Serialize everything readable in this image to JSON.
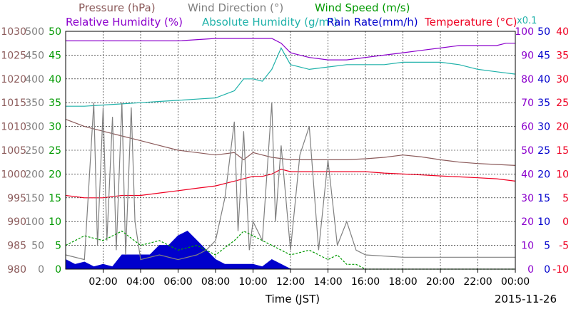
{
  "chart_data": {
    "type": "line",
    "xlabel": "Time (JST)",
    "date": "2015-11-26",
    "scale_note": "x0.1",
    "x_ticks": [
      "02:00",
      "04:00",
      "06:00",
      "08:00",
      "10:00",
      "12:00",
      "14:00",
      "16:00",
      "18:00",
      "20:00",
      "22:00",
      "00:00"
    ],
    "x_range": [
      0,
      24
    ],
    "legend_row1": [
      {
        "name": "Pressure (hPa)",
        "color": "#8b5a5a"
      },
      {
        "name": "Wind Direction (°)",
        "color": "#808080"
      },
      {
        "name": "Wind Speed (m/s)",
        "color": "#009900"
      }
    ],
    "legend_row2": [
      {
        "name": "Relative Humidity (%)",
        "color": "#8b00cc"
      },
      {
        "name": "Absolute Humidity (g/m³)",
        "color": "#20b2aa"
      },
      {
        "name": "Rain Rate(mm/h)",
        "color": "#0000cc"
      },
      {
        "name": "Temperature (°C)",
        "color": "#ee0022"
      }
    ],
    "axes": {
      "pressure": {
        "color": "#8b5a5a",
        "ticks": [
          "980",
          "985",
          "990",
          "995",
          "1000",
          "1005",
          "1010",
          "1015",
          "1020",
          "1025",
          "1030"
        ],
        "range": [
          980,
          1030
        ]
      },
      "wind_direction": {
        "color": "#808080",
        "ticks": [
          "0",
          "50",
          "100",
          "150",
          "200",
          "250",
          "300",
          "350",
          "400",
          "450",
          "500"
        ],
        "range": [
          0,
          500
        ]
      },
      "wind_speed": {
        "color": "#009900",
        "ticks": [
          "0",
          "5",
          "10",
          "15",
          "20",
          "25",
          "30",
          "35",
          "40",
          "45",
          "50"
        ],
        "range": [
          0,
          50
        ]
      },
      "relative_humidity": {
        "color": "#8b00cc",
        "ticks": [
          "0",
          "10",
          "20",
          "30",
          "40",
          "50",
          "60",
          "70",
          "80",
          "90",
          "100"
        ],
        "range": [
          0,
          100
        ]
      },
      "rain_rate": {
        "color": "#0000cc",
        "ticks": [
          "0",
          "5",
          "10",
          "15",
          "20",
          "25",
          "30",
          "35",
          "40",
          "45",
          "50"
        ],
        "range": [
          0,
          50
        ]
      },
      "temperature": {
        "color": "#ee0022",
        "ticks": [
          "-10",
          "-5",
          "0",
          "5",
          "10",
          "15",
          "20",
          "25",
          "30",
          "35",
          "40"
        ],
        "range": [
          -10,
          40
        ]
      }
    },
    "grid": true,
    "series": [
      {
        "name": "Pressure (hPa)",
        "color": "#8b5a5a",
        "axis": "pressure",
        "x": [
          0,
          1,
          2,
          3,
          4,
          5,
          6,
          7,
          8,
          9,
          9.5,
          10,
          10.5,
          11,
          12,
          13,
          14,
          15,
          16,
          17,
          18,
          19,
          20,
          21,
          22,
          23,
          24
        ],
        "y": [
          1011.5,
          1010,
          1009,
          1008,
          1007,
          1006,
          1005,
          1004.5,
          1004,
          1004.5,
          1003,
          1004.5,
          1004,
          1003.5,
          1003,
          1003,
          1003,
          1003,
          1003.2,
          1003.5,
          1004,
          1003.6,
          1003,
          1002.5,
          1002.2,
          1002,
          1001.8
        ]
      },
      {
        "name": "Relative Humidity (%)",
        "color": "#8b00cc",
        "axis": "relative_humidity",
        "x": [
          0,
          2,
          4,
          6,
          8,
          10,
          11,
          11.5,
          12,
          12.5,
          13,
          14,
          15,
          16,
          17,
          18,
          19,
          20,
          21,
          22,
          23,
          23.5,
          24
        ],
        "y": [
          96,
          96,
          96,
          96,
          97,
          97,
          97,
          95,
          91,
          90,
          89,
          88,
          88,
          89,
          90,
          91,
          92,
          93,
          94,
          94,
          94,
          95,
          95
        ]
      },
      {
        "name": "Absolute Humidity (g/m³)",
        "color": "#20b2aa",
        "axis": "relative_humidity",
        "x": [
          0,
          1,
          2,
          3,
          4,
          5,
          6,
          7,
          8,
          9,
          9.5,
          10,
          10.5,
          11,
          11.5,
          12,
          12.5,
          13,
          14,
          15,
          16,
          17,
          18,
          19,
          20,
          21,
          22,
          23,
          24
        ],
        "y": [
          68.5,
          68.5,
          69,
          69.5,
          70,
          70.5,
          71,
          71.5,
          72,
          75,
          80,
          80,
          79,
          84,
          93,
          86,
          85,
          84,
          85,
          86,
          86,
          86,
          87,
          87,
          87,
          86,
          84,
          83,
          82
        ]
      },
      {
        "name": "Rain Rate(mm/h)",
        "color": "#0000cc",
        "axis": "rain_rate",
        "x": [
          0,
          0.5,
          1,
          1.5,
          2,
          2.5,
          3,
          3.5,
          4,
          4.5,
          5,
          5.5,
          6,
          6.5,
          7,
          7.5,
          8,
          8.5,
          9,
          9.5,
          10,
          10.5,
          11,
          12,
          13,
          14,
          15,
          16,
          24
        ],
        "y": [
          2,
          1,
          1.5,
          0.5,
          1,
          0.5,
          3,
          3,
          3,
          3,
          5,
          5,
          7,
          8,
          6,
          4,
          2,
          1,
          1,
          1,
          1,
          0.5,
          2,
          0,
          0,
          0,
          0,
          0,
          0
        ]
      },
      {
        "name": "Temperature (°C)",
        "color": "#ee0022",
        "axis": "temperature",
        "x": [
          0,
          1,
          2,
          3,
          4,
          5,
          6,
          7,
          8,
          9,
          9.5,
          10,
          10.5,
          11,
          11.5,
          12,
          13,
          14,
          15,
          16,
          17,
          18,
          19,
          20,
          21,
          22,
          23,
          24
        ],
        "y": [
          5.5,
          5,
          5,
          5.5,
          5.5,
          6,
          6.5,
          7,
          7.5,
          8.5,
          9,
          9.5,
          9.5,
          10,
          11,
          10.5,
          10.5,
          10.5,
          10.5,
          10.5,
          10.2,
          10,
          9.8,
          9.6,
          9.4,
          9.2,
          9,
          8.5
        ]
      },
      {
        "name": "Wind Direction (°)",
        "color": "#808080",
        "axis": "wind_direction",
        "x": [
          0,
          1,
          1.5,
          1.7,
          2,
          2.2,
          2.5,
          2.7,
          3,
          3.2,
          3.5,
          3.7,
          4,
          5,
          6,
          7,
          7.5,
          8,
          8.5,
          9,
          9.2,
          9.5,
          9.8,
          10,
          10.5,
          11,
          11.2,
          11.5,
          12,
          12.5,
          13,
          13.5,
          14,
          14.5,
          15,
          15.5,
          16,
          18,
          20,
          22,
          24
        ],
        "y": [
          30,
          20,
          350,
          50,
          340,
          60,
          320,
          40,
          350,
          30,
          340,
          100,
          20,
          30,
          20,
          30,
          40,
          60,
          150,
          310,
          80,
          290,
          40,
          100,
          60,
          350,
          100,
          260,
          40,
          240,
          300,
          40,
          230,
          50,
          100,
          40,
          30,
          25,
          25,
          25,
          25
        ]
      },
      {
        "name": "Wind Speed (m/s)",
        "color": "#009900",
        "axis": "wind_speed",
        "x": [
          0,
          1,
          2,
          3,
          4,
          5,
          6,
          7,
          8,
          9,
          9.5,
          10,
          11,
          12,
          13,
          14,
          14.5,
          15,
          15.5,
          16,
          24
        ],
        "y": [
          5,
          7,
          6,
          8,
          5,
          6,
          4,
          5,
          3,
          6,
          8,
          7,
          5,
          3,
          4,
          2,
          3,
          1,
          1,
          0,
          0
        ]
      }
    ]
  }
}
